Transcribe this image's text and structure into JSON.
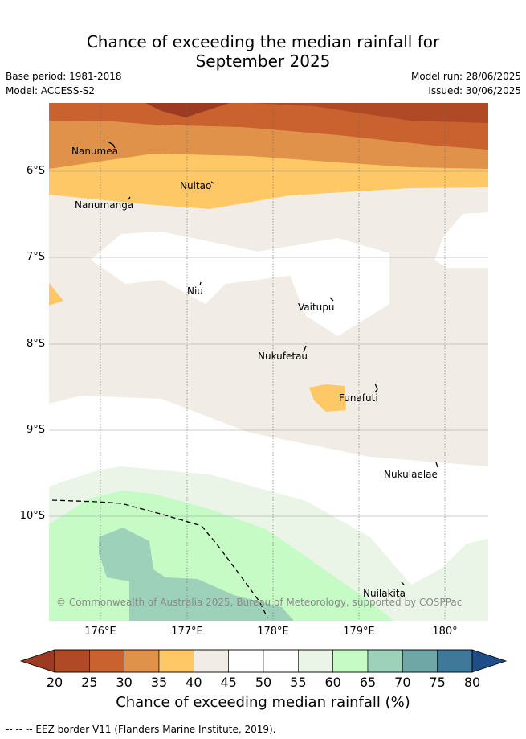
{
  "title_line1": "Chance of exceeding the median rainfall for",
  "title_line2": "September 2025",
  "base_period": "Base period: 1981-2018",
  "model": "Model: ACCESS-S2",
  "model_run": "Model run: 28/06/2025",
  "issued": "Issued: 30/06/2025",
  "lat_ticks": [
    "6°S",
    "7°S",
    "8°S",
    "9°S",
    "10°S"
  ],
  "lon_ticks": [
    "176°E",
    "177°E",
    "178°E",
    "179°E",
    "180°"
  ],
  "places": [
    "Nanumea",
    "Nuitao",
    "Nanumanga",
    "Niu",
    "Vaitupu",
    "Nukufetau",
    "Funafuti",
    "Nukulaelae",
    "Nuilakita"
  ],
  "copyright": "© Commonwealth of Australia 2025, Bureau of Meteorology, supported by COSPPac",
  "colorbar": {
    "labels": [
      "20",
      "25",
      "30",
      "35",
      "40",
      "45",
      "50",
      "55",
      "60",
      "65",
      "70",
      "75",
      "80"
    ],
    "colors": [
      "#b04a26",
      "#c9622f",
      "#e0924a",
      "#fdc865",
      "#f1ece6",
      "#ffffff",
      "#ffffff",
      "#eaf5e8",
      "#c6fbc5",
      "#9ed1ba",
      "#6fa6a6",
      "#3f7898"
    ],
    "under_color": "#9c3b22",
    "over_color": "#1e4d88",
    "title": "Chance of exceeding median rainfall (%)"
  },
  "eez_legend": "-- -- -- EEZ border V11 (Flanders Marine Institute, 2019)."
}
